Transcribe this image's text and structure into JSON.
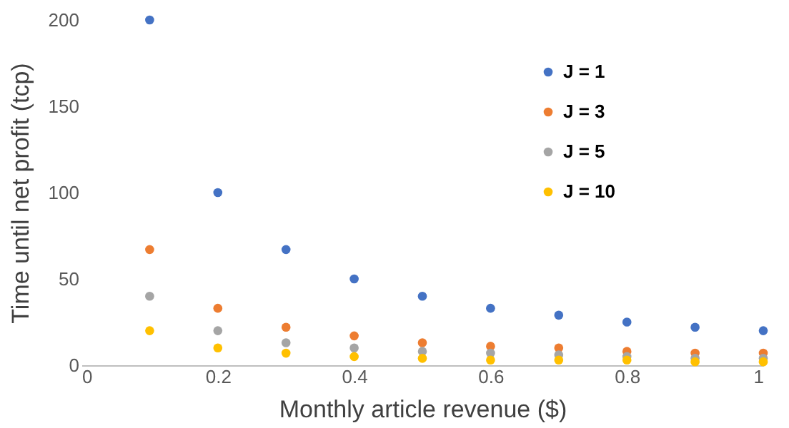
{
  "chart_data": {
    "type": "scatter",
    "xlabel": "Monthly article revenue ($)",
    "ylabel": "Time until net profit (tcp)",
    "x": [
      0.1,
      0.2,
      0.3,
      0.4,
      0.5,
      0.6,
      0.7,
      0.8,
      0.9,
      1
    ],
    "series": [
      {
        "name": "J = 1",
        "color": "#4472c4",
        "values": [
          200,
          100,
          67,
          50,
          40,
          33,
          29,
          25,
          22,
          20
        ]
      },
      {
        "name": "J = 3",
        "color": "#ed7d31",
        "values": [
          67,
          33,
          22,
          17,
          13,
          11,
          10,
          8,
          7,
          7
        ]
      },
      {
        "name": "J = 5",
        "color": "#a5a5a5",
        "values": [
          40,
          20,
          13,
          10,
          8,
          7,
          6,
          5,
          4,
          4
        ]
      },
      {
        "name": "J = 10",
        "color": "#ffc000",
        "values": [
          20,
          10,
          7,
          5,
          4,
          3,
          3,
          3,
          2,
          2
        ]
      }
    ],
    "xlim": [
      0,
      1
    ],
    "xticks": [
      0,
      0.2,
      0.4,
      0.6,
      0.8,
      1
    ],
    "ylim": [
      0,
      200
    ],
    "yticks": [
      0,
      50,
      100,
      150,
      200
    ],
    "grid": false,
    "legend": "top",
    "marker": "circle"
  }
}
